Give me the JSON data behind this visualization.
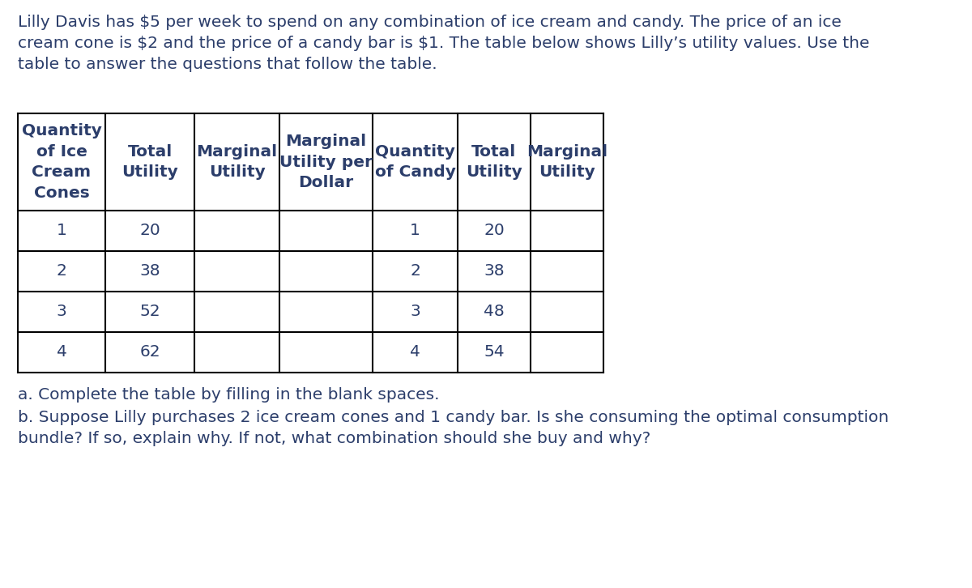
{
  "intro_line1": "Lilly Davis has $5 per week to spend on any combination of ice cream and candy. The price of an ice",
  "intro_line2": "cream cone is $2 and the price of a candy bar is $1. The table below shows Lilly’s utility values. Use the",
  "intro_line3": "table to answer the questions that follow the table.",
  "col_headers": [
    [
      "Quantity",
      "of Ice",
      "Cream",
      "Cones"
    ],
    [
      "Total",
      "Utility"
    ],
    [
      "Marginal",
      "Utility"
    ],
    [
      "Marginal",
      "Utility per",
      "Dollar"
    ],
    [
      "Quantity",
      "of Candy"
    ],
    [
      "Total",
      "Utility"
    ],
    [
      "Marginal",
      "Utility"
    ]
  ],
  "ice_cream_qty": [
    1,
    2,
    3,
    4
  ],
  "ice_cream_total_utility": [
    20,
    38,
    52,
    62
  ],
  "candy_qty": [
    1,
    2,
    3,
    4
  ],
  "candy_total_utility": [
    20,
    38,
    48,
    54
  ],
  "question_a": "a. Complete the table by filling in the blank spaces.",
  "question_b1": "b. Suppose Lilly purchases 2 ice cream cones and 1 candy bar. Is she consuming the optimal consumption",
  "question_b2": "bundle? If so, explain why. If not, what combination should she buy and why?",
  "text_color": "#2c3e6b",
  "bg_color": "#ffffff",
  "font_size": 14.5,
  "font_size_table": 14.5
}
